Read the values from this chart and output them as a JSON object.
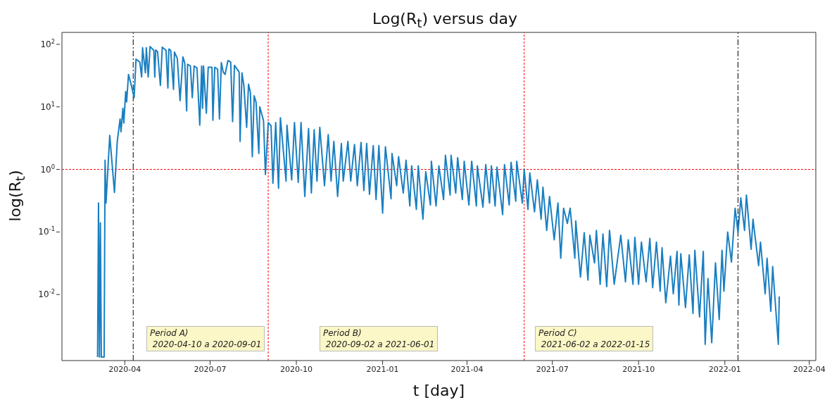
{
  "chart_data": {
    "type": "line",
    "title": "Log(R$_{t}$) versus day",
    "xlabel": "t [day]",
    "ylabel": "log(R$_{t}$)",
    "log": "y",
    "marker": "none",
    "line_style": "solid",
    "xlim": [
      "2020-01-25",
      "2022-04-08"
    ],
    "xticks": [
      "2020-04",
      "2020-07",
      "2020-10",
      "2021-01",
      "2021-04",
      "2021-07",
      "2021-10",
      "2022-01",
      "2022-04"
    ],
    "ylim": [
      0.00088,
      155
    ],
    "yticks": [
      {
        "value": 0.01,
        "label": "10$^{-2}$"
      },
      {
        "value": 0.1,
        "label": "10$^{-1}$"
      },
      {
        "value": 1,
        "label": "10$^{0}$"
      },
      {
        "value": 10,
        "label": "10$^{1}$"
      },
      {
        "value": 100,
        "label": "10$^{2}$"
      }
    ],
    "ref_lines": [
      {
        "axis": "x",
        "value": "2020-04-10",
        "color": "#000000",
        "line_style": "dashed"
      },
      {
        "axis": "x",
        "value": "2020-09-01",
        "color": "#ff0000",
        "line_style": "dotted"
      },
      {
        "axis": "x",
        "value": "2021-06-01",
        "color": "#ff0000",
        "line_style": "dotted"
      },
      {
        "axis": "x",
        "value": "2022-01-15",
        "color": "#000000",
        "line_style": "dashed"
      },
      {
        "axis": "y",
        "value": 1,
        "color": "#ff0000",
        "line_style": "dotted"
      }
    ],
    "annotations": [
      "Period A)\n 2020-04-10 a 2020-09-01",
      "Period B)\n 2020-09-02 a 2021-06-01",
      "Period C)\n 2021-06-02 a 2022-01-15"
    ],
    "series": [
      {
        "color": "#1a7fc1",
        "x": [
          "2020-03-03",
          "2020-03-04",
          "2020-03-05",
          "2020-03-06",
          "2020-03-07",
          "2020-03-10",
          "2020-03-11",
          "2020-03-12",
          "2020-03-16",
          "2020-03-21",
          "2020-03-24",
          "2020-03-27",
          "2020-03-28",
          "2020-03-30",
          "2020-03-31",
          "2020-04-02",
          "2020-04-03",
          "2020-04-05",
          "2020-04-08",
          "2020-04-11",
          "2020-04-13",
          "2020-04-17",
          "2020-04-19",
          "2020-04-20",
          "2020-04-23",
          "2020-04-24",
          "2020-04-26",
          "2020-04-28",
          "2020-05-02",
          "2020-05-03",
          "2020-05-04",
          "2020-05-06",
          "2020-05-09",
          "2020-05-11",
          "2020-05-15",
          "2020-05-17",
          "2020-05-18",
          "2020-05-20",
          "2020-05-23",
          "2020-05-24",
          "2020-05-27",
          "2020-05-30",
          "2020-06-02",
          "2020-06-04",
          "2020-06-06",
          "2020-06-07",
          "2020-06-10",
          "2020-06-12",
          "2020-06-14",
          "2020-06-17",
          "2020-06-20",
          "2020-06-22",
          "2020-06-23",
          "2020-06-24",
          "2020-06-27",
          "2020-06-29",
          "2020-07-03",
          "2020-07-04",
          "2020-07-06",
          "2020-07-09",
          "2020-07-11",
          "2020-07-13",
          "2020-07-15",
          "2020-07-17",
          "2020-07-20",
          "2020-07-23",
          "2020-07-25",
          "2020-07-27",
          "2020-08-01",
          "2020-08-02",
          "2020-08-04",
          "2020-08-06",
          "2020-08-09",
          "2020-08-11",
          "2020-08-13",
          "2020-08-15",
          "2020-08-17",
          "2020-08-19",
          "2020-08-22",
          "2020-08-23",
          "2020-08-27",
          "2020-08-29",
          "2020-09-01",
          "2020-09-04",
          "2020-09-06",
          "2020-09-09",
          "2020-09-12",
          "2020-09-14",
          "2020-09-20",
          "2020-09-21",
          "2020-09-26",
          "2020-09-29",
          "2020-10-03",
          "2020-10-06",
          "2020-10-10",
          "2020-10-14",
          "2020-10-17",
          "2020-10-20",
          "2020-10-23",
          "2020-10-26",
          "2020-10-31",
          "2020-11-04",
          "2020-11-07",
          "2020-11-10",
          "2020-11-14",
          "2020-11-18",
          "2020-11-20",
          "2020-11-25",
          "2020-11-28",
          "2020-12-02",
          "2020-12-05",
          "2020-12-09",
          "2020-12-12",
          "2020-12-15",
          "2020-12-18",
          "2020-12-22",
          "2020-12-25",
          "2020-12-28",
          "2021-01-01",
          "2021-01-04",
          "2021-01-10",
          "2021-01-11",
          "2021-01-16",
          "2021-01-18",
          "2021-01-23",
          "2021-01-26",
          "2021-01-30",
          "2021-02-01",
          "2021-02-06",
          "2021-02-08",
          "2021-02-13",
          "2021-02-16",
          "2021-02-21",
          "2021-02-22",
          "2021-02-27",
          "2021-03-02",
          "2021-03-07",
          "2021-03-09",
          "2021-03-14",
          "2021-03-15",
          "2021-03-20",
          "2021-03-22",
          "2021-03-27",
          "2021-03-29",
          "2021-04-03",
          "2021-04-06",
          "2021-04-11",
          "2021-04-12",
          "2021-04-18",
          "2021-04-21",
          "2021-04-25",
          "2021-04-27",
          "2021-05-01",
          "2021-05-03",
          "2021-05-09",
          "2021-05-11",
          "2021-05-16",
          "2021-05-18",
          "2021-05-23",
          "2021-05-24",
          "2021-05-30",
          "2021-06-01",
          "2021-06-05",
          "2021-06-07",
          "2021-06-12",
          "2021-06-15",
          "2021-06-19",
          "2021-06-21",
          "2021-06-25",
          "2021-06-28",
          "2021-07-03",
          "2021-07-07",
          "2021-07-10",
          "2021-07-13",
          "2021-07-17",
          "2021-07-20",
          "2021-07-25",
          "2021-07-26",
          "2021-07-31",
          "2021-08-04",
          "2021-08-08",
          "2021-08-10",
          "2021-08-15",
          "2021-08-17",
          "2021-08-21",
          "2021-08-24",
          "2021-08-28",
          "2021-08-31",
          "2021-09-05",
          "2021-09-12",
          "2021-09-17",
          "2021-09-20",
          "2021-09-25",
          "2021-09-27",
          "2021-10-01",
          "2021-10-04",
          "2021-10-09",
          "2021-10-13",
          "2021-10-16",
          "2021-10-20",
          "2021-10-24",
          "2021-10-26",
          "2021-10-30",
          "2021-11-04",
          "2021-11-07",
          "2021-11-11",
          "2021-11-13",
          "2021-11-15",
          "2021-11-20",
          "2021-11-24",
          "2021-11-28",
          "2021-11-30",
          "2021-12-05",
          "2021-12-09",
          "2021-12-11",
          "2021-12-14",
          "2021-12-18",
          "2021-12-22",
          "2021-12-26",
          "2021-12-29",
          "2021-12-31",
          "2022-01-04",
          "2022-01-08",
          "2022-01-12",
          "2022-01-15",
          "2022-01-18",
          "2022-01-22",
          "2022-01-24",
          "2022-01-29",
          "2022-01-31",
          "2022-02-06",
          "2022-02-08",
          "2022-02-13",
          "2022-02-15",
          "2022-02-19",
          "2022-02-21",
          "2022-02-27",
          "2022-02-28"
        ],
        "values": [
          0.001,
          0.29,
          0.001,
          0.14,
          0.001,
          0.001,
          1.4,
          0.29,
          3.5,
          0.43,
          2.8,
          6.4,
          4,
          9.5,
          5.5,
          17.6,
          12,
          33,
          22,
          14,
          58,
          52,
          30,
          88,
          35,
          88,
          30,
          92,
          80,
          30,
          81,
          76,
          22,
          90,
          80,
          20,
          84,
          80,
          19,
          75,
          60,
          12.6,
          63,
          50,
          8.6,
          48,
          45,
          14,
          45,
          42,
          5.1,
          45,
          9.5,
          45,
          7.9,
          43,
          43,
          6.1,
          43,
          40,
          6.4,
          51,
          36,
          33,
          55,
          52,
          5.8,
          46,
          36,
          2.8,
          35,
          22,
          4.7,
          23,
          17,
          1.6,
          15,
          12,
          1.8,
          10,
          6,
          0.83,
          5.6,
          5,
          0.6,
          5.6,
          0.5,
          6.7,
          0.65,
          5.1,
          0.68,
          5.6,
          0.62,
          5.6,
          0.37,
          4.5,
          0.42,
          4.3,
          0.65,
          4.7,
          0.55,
          3.6,
          0.65,
          2.8,
          0.37,
          2.6,
          0.65,
          2.8,
          0.65,
          2.5,
          0.55,
          2.7,
          0.46,
          2.6,
          0.4,
          2.4,
          0.33,
          2.4,
          0.2,
          2.3,
          0.34,
          1.8,
          0.55,
          1.6,
          0.42,
          1.4,
          0.26,
          1.14,
          0.23,
          1.14,
          0.16,
          0.92,
          0.27,
          1.35,
          0.26,
          1.14,
          0.33,
          1.68,
          0.39,
          1.68,
          0.42,
          1.54,
          0.33,
          1.35,
          0.27,
          1.35,
          0.26,
          1.14,
          0.25,
          1.19,
          0.29,
          1.14,
          0.26,
          1.09,
          0.19,
          1.19,
          0.27,
          1.3,
          0.31,
          1.35,
          0.29,
          1.0,
          0.23,
          0.88,
          0.21,
          0.68,
          0.16,
          0.52,
          0.106,
          0.37,
          0.075,
          0.29,
          0.038,
          0.24,
          0.137,
          0.24,
          0.038,
          0.15,
          0.019,
          0.097,
          0.017,
          0.089,
          0.032,
          0.106,
          0.0146,
          0.093,
          0.0134,
          0.106,
          0.0146,
          0.089,
          0.016,
          0.075,
          0.0146,
          0.082,
          0.0146,
          0.069,
          0.016,
          0.079,
          0.0129,
          0.069,
          0.0113,
          0.056,
          0.0074,
          0.041,
          0.0103,
          0.049,
          0.0068,
          0.045,
          0.0062,
          0.043,
          0.005,
          0.051,
          0.0044,
          0.049,
          0.0016,
          0.018,
          0.0017,
          0.032,
          0.004,
          0.051,
          0.0113,
          0.1,
          0.033,
          0.24,
          0.097,
          0.35,
          0.106,
          0.39,
          0.053,
          0.16,
          0.029,
          0.069,
          0.0103,
          0.038,
          0.0054,
          0.028,
          0.0016,
          0.0093
        ]
      }
    ]
  }
}
